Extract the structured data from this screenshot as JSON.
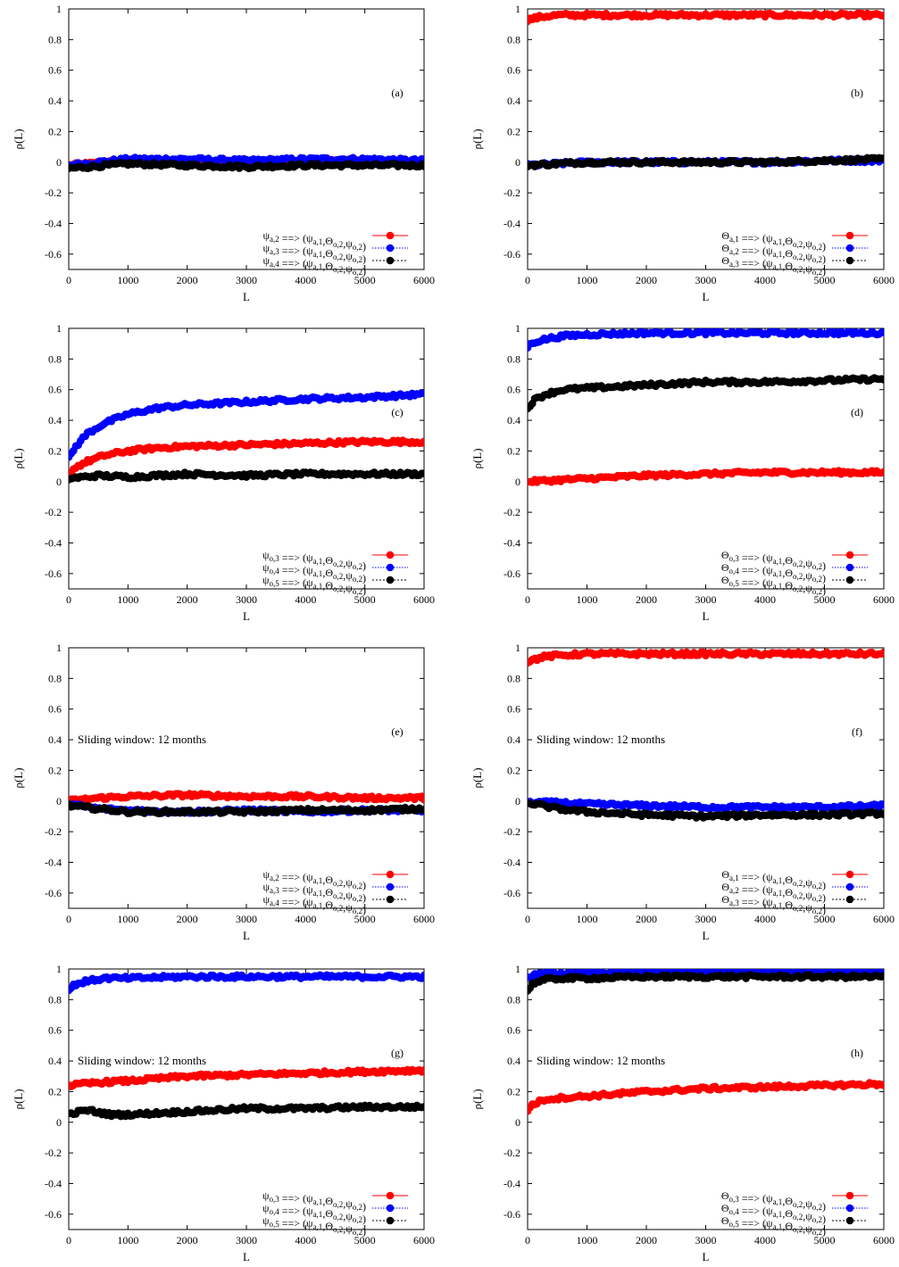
{
  "figure": {
    "x_ticks": [
      "0",
      "1000",
      "2000",
      "3000",
      "4000",
      "5000",
      "6000"
    ],
    "y_ticks": [
      "1",
      "0.8",
      "0.6",
      "0.4",
      "0.2",
      "0",
      "-0.2",
      "-0.4",
      "-0.6"
    ],
    "xlabel": "L",
    "ylabel": "ρ(L)",
    "colors": {
      "red": "#ff0000",
      "blue": "#0000ff",
      "black": "#000000"
    }
  },
  "chart_data": [
    {
      "type": "scatter",
      "panel": "(a)",
      "annotation": "",
      "xlabel": "L",
      "ylabel": "ρ(L)",
      "xlim": [
        0,
        6000
      ],
      "ylim": [
        -0.7,
        1
      ],
      "grid": false,
      "legend_position": "bottom-right",
      "series": [
        {
          "name": {
            "v": "ψ",
            "vs": "a,2",
            "t1": "ψ",
            "t1s": "a,1",
            "t2": "Θ",
            "t2s": "o,2",
            "t3": "ψ",
            "t3s": "o,2"
          },
          "color": "#ff0000",
          "line": "solid",
          "x": [
            0,
            1000,
            2000,
            3000,
            4000,
            5000,
            6000
          ],
          "y": [
            -0.02,
            0.01,
            0.01,
            0.0,
            0.01,
            0.01,
            0.0
          ]
        },
        {
          "name": {
            "v": "ψ",
            "vs": "a,3",
            "t1": "ψ",
            "t1s": "a,1",
            "t2": "Θ",
            "t2s": "o,2",
            "t3": "ψ",
            "t3s": "o,2"
          },
          "color": "#0000ff",
          "line": "dotted",
          "x": [
            0,
            1000,
            2000,
            3000,
            4000,
            5000,
            6000
          ],
          "y": [
            -0.02,
            0.02,
            0.02,
            0.01,
            0.02,
            0.02,
            0.01
          ]
        },
        {
          "name": {
            "v": "ψ",
            "vs": "a,4",
            "t1": "ψ",
            "t1s": "a,1",
            "t2": "Θ",
            "t2s": "o,2",
            "t3": "ψ",
            "t3s": "o,2"
          },
          "color": "#000000",
          "line": "dashed",
          "x": [
            0,
            1000,
            2000,
            3000,
            4000,
            5000,
            6000
          ],
          "y": [
            -0.04,
            -0.01,
            -0.02,
            -0.03,
            -0.02,
            -0.02,
            -0.02
          ]
        }
      ]
    },
    {
      "type": "scatter",
      "panel": "(b)",
      "annotation": "",
      "xlabel": "L",
      "ylabel": "ρ(L)",
      "xlim": [
        0,
        6000
      ],
      "ylim": [
        -0.7,
        1
      ],
      "grid": false,
      "legend_position": "bottom-right",
      "series": [
        {
          "name": {
            "v": "Θ",
            "vs": "a,1",
            "t1": "ψ",
            "t1s": "a,1",
            "t2": "Θ",
            "t2s": "o,2",
            "t3": "ψ",
            "t3s": "o,2"
          },
          "color": "#ff0000",
          "line": "solid",
          "x": [
            0,
            250,
            500,
            1000,
            2000,
            3000,
            4000,
            5000,
            6000
          ],
          "y": [
            0.93,
            0.95,
            0.96,
            0.96,
            0.96,
            0.96,
            0.96,
            0.96,
            0.96
          ]
        },
        {
          "name": {
            "v": "Θ",
            "vs": "a,2",
            "t1": "ψ",
            "t1s": "a,1",
            "t2": "Θ",
            "t2s": "o,2",
            "t3": "ψ",
            "t3s": "o,2"
          },
          "color": "#0000ff",
          "line": "dotted",
          "x": [
            0,
            1000,
            2000,
            3000,
            4000,
            5000,
            6000
          ],
          "y": [
            -0.02,
            0.0,
            0.0,
            0.0,
            0.0,
            0.01,
            0.01
          ]
        },
        {
          "name": {
            "v": "Θ",
            "vs": "a,3",
            "t1": "ψ",
            "t1s": "a,1",
            "t2": "Θ",
            "t2s": "o,2",
            "t3": "ψ",
            "t3s": "o,2"
          },
          "color": "#000000",
          "line": "dashed",
          "x": [
            0,
            1000,
            2000,
            3000,
            4000,
            5000,
            6000
          ],
          "y": [
            -0.02,
            0.0,
            0.0,
            0.0,
            0.0,
            0.01,
            0.02
          ]
        }
      ]
    },
    {
      "type": "scatter",
      "panel": "(c)",
      "annotation": "",
      "xlabel": "L",
      "ylabel": "ρ(L)",
      "xlim": [
        0,
        6000
      ],
      "ylim": [
        -0.7,
        1
      ],
      "grid": false,
      "legend_position": "bottom-right",
      "series": [
        {
          "name": {
            "v": "ψ",
            "vs": "o,3",
            "t1": "ψ",
            "t1s": "a,1",
            "t2": "Θ",
            "t2s": "o,2",
            "t3": "ψ",
            "t3s": "o,2"
          },
          "color": "#ff0000",
          "line": "solid",
          "x": [
            0,
            100,
            300,
            600,
            1000,
            1500,
            2000,
            3000,
            4000,
            5000,
            6000
          ],
          "y": [
            0.05,
            0.09,
            0.13,
            0.17,
            0.2,
            0.22,
            0.23,
            0.24,
            0.25,
            0.26,
            0.26
          ]
        },
        {
          "name": {
            "v": "ψ",
            "vs": "o,4",
            "t1": "ψ",
            "t1s": "a,1",
            "t2": "Θ",
            "t2s": "o,2",
            "t3": "ψ",
            "t3s": "o,2"
          },
          "color": "#0000ff",
          "line": "dotted",
          "x": [
            0,
            100,
            300,
            600,
            1000,
            1500,
            2000,
            3000,
            4000,
            5000,
            6000
          ],
          "y": [
            0.15,
            0.22,
            0.31,
            0.38,
            0.44,
            0.48,
            0.5,
            0.52,
            0.54,
            0.55,
            0.57
          ]
        },
        {
          "name": {
            "v": "ψ",
            "vs": "o,5",
            "t1": "ψ",
            "t1s": "a,1",
            "t2": "Θ",
            "t2s": "o,2",
            "t3": "ψ",
            "t3s": "o,2"
          },
          "color": "#000000",
          "line": "dashed",
          "x": [
            0,
            500,
            1000,
            2000,
            3000,
            4000,
            5000,
            6000
          ],
          "y": [
            0.02,
            0.04,
            0.03,
            0.05,
            0.04,
            0.05,
            0.05,
            0.05
          ]
        }
      ]
    },
    {
      "type": "scatter",
      "panel": "(d)",
      "annotation": "",
      "xlabel": "L",
      "ylabel": "ρ(L)",
      "xlim": [
        0,
        6000
      ],
      "ylim": [
        -0.7,
        1
      ],
      "grid": false,
      "legend_position": "bottom-right",
      "series": [
        {
          "name": {
            "v": "Θ",
            "vs": "o,3",
            "t1": "ψ",
            "t1s": "a,1",
            "t2": "Θ",
            "t2s": "o,2",
            "t3": "ψ",
            "t3s": "o,2"
          },
          "color": "#ff0000",
          "line": "solid",
          "x": [
            0,
            500,
            1000,
            2000,
            3000,
            4000,
            5000,
            6000
          ],
          "y": [
            0.0,
            0.01,
            0.02,
            0.04,
            0.05,
            0.06,
            0.06,
            0.06
          ]
        },
        {
          "name": {
            "v": "Θ",
            "vs": "o,4",
            "t1": "ψ",
            "t1s": "a,1",
            "t2": "Θ",
            "t2s": "o,2",
            "t3": "ψ",
            "t3s": "o,2"
          },
          "color": "#0000ff",
          "line": "dotted",
          "x": [
            0,
            100,
            300,
            600,
            1000,
            2000,
            3000,
            4000,
            5000,
            6000
          ],
          "y": [
            0.88,
            0.91,
            0.93,
            0.95,
            0.96,
            0.97,
            0.97,
            0.97,
            0.97,
            0.97
          ]
        },
        {
          "name": {
            "v": "Θ",
            "vs": "o,5",
            "t1": "ψ",
            "t1s": "a,1",
            "t2": "Θ",
            "t2s": "o,2",
            "t3": "ψ",
            "t3s": "o,2"
          },
          "color": "#000000",
          "line": "dashed",
          "x": [
            0,
            100,
            300,
            600,
            1000,
            2000,
            3000,
            4000,
            5000,
            6000
          ],
          "y": [
            0.48,
            0.53,
            0.57,
            0.6,
            0.61,
            0.63,
            0.65,
            0.65,
            0.66,
            0.67
          ]
        }
      ]
    },
    {
      "type": "scatter",
      "panel": "(e)",
      "annotation": "Sliding window: 12 months",
      "xlabel": "L",
      "ylabel": "ρ(L)",
      "xlim": [
        0,
        6000
      ],
      "ylim": [
        -0.7,
        1
      ],
      "grid": false,
      "legend_position": "bottom-right",
      "series": [
        {
          "name": {
            "v": "ψ",
            "vs": "a,2",
            "t1": "ψ",
            "t1s": "a,1",
            "t2": "Θ",
            "t2s": "o,2",
            "t3": "ψ",
            "t3s": "o,2"
          },
          "color": "#ff0000",
          "line": "solid",
          "x": [
            0,
            500,
            1000,
            2000,
            3000,
            4000,
            5000,
            6000
          ],
          "y": [
            0.0,
            0.02,
            0.03,
            0.04,
            0.03,
            0.03,
            0.02,
            0.02
          ]
        },
        {
          "name": {
            "v": "ψ",
            "vs": "a,3",
            "t1": "ψ",
            "t1s": "a,1",
            "t2": "Θ",
            "t2s": "o,2",
            "t3": "ψ",
            "t3s": "o,2"
          },
          "color": "#0000ff",
          "line": "dotted",
          "x": [
            0,
            500,
            1000,
            2000,
            3000,
            4000,
            5000,
            6000
          ],
          "y": [
            -0.02,
            -0.05,
            -0.06,
            -0.07,
            -0.06,
            -0.07,
            -0.06,
            -0.06
          ]
        },
        {
          "name": {
            "v": "ψ",
            "vs": "a,4",
            "t1": "ψ",
            "t1s": "a,1",
            "t2": "Θ",
            "t2s": "o,2",
            "t3": "ψ",
            "t3s": "o,2"
          },
          "color": "#000000",
          "line": "dashed",
          "x": [
            0,
            500,
            1000,
            2000,
            3000,
            4000,
            5000,
            6000
          ],
          "y": [
            -0.03,
            -0.05,
            -0.07,
            -0.07,
            -0.07,
            -0.06,
            -0.06,
            -0.05
          ]
        }
      ]
    },
    {
      "type": "scatter",
      "panel": "(f)",
      "annotation": "Sliding window: 12 months",
      "xlabel": "L",
      "ylabel": "ρ(L)",
      "xlim": [
        0,
        6000
      ],
      "ylim": [
        -0.7,
        1
      ],
      "grid": false,
      "legend_position": "bottom-right",
      "series": [
        {
          "name": {
            "v": "Θ",
            "vs": "a,1",
            "t1": "ψ",
            "t1s": "a,1",
            "t2": "Θ",
            "t2s": "o,2",
            "t3": "ψ",
            "t3s": "o,2"
          },
          "color": "#ff0000",
          "line": "solid",
          "x": [
            0,
            250,
            500,
            1000,
            2000,
            3000,
            4000,
            5000,
            6000
          ],
          "y": [
            0.91,
            0.94,
            0.95,
            0.96,
            0.96,
            0.96,
            0.96,
            0.96,
            0.96
          ]
        },
        {
          "name": {
            "v": "Θ",
            "vs": "a,2",
            "t1": "ψ",
            "t1s": "a,1",
            "t2": "Θ",
            "t2s": "o,2",
            "t3": "ψ",
            "t3s": "o,2"
          },
          "color": "#0000ff",
          "line": "dotted",
          "x": [
            0,
            500,
            1000,
            2000,
            3000,
            4000,
            5000,
            6000
          ],
          "y": [
            -0.01,
            -0.01,
            -0.02,
            -0.03,
            -0.04,
            -0.04,
            -0.04,
            -0.03
          ]
        },
        {
          "name": {
            "v": "Θ",
            "vs": "a,3",
            "t1": "ψ",
            "t1s": "a,1",
            "t2": "Θ",
            "t2s": "o,2",
            "t3": "ψ",
            "t3s": "o,2"
          },
          "color": "#000000",
          "line": "dashed",
          "x": [
            0,
            500,
            1000,
            2000,
            3000,
            4000,
            5000,
            6000
          ],
          "y": [
            -0.01,
            -0.05,
            -0.07,
            -0.09,
            -0.1,
            -0.09,
            -0.09,
            -0.08
          ]
        }
      ]
    },
    {
      "type": "scatter",
      "panel": "(g)",
      "annotation": "Sliding window: 12 months",
      "xlabel": "L",
      "ylabel": "ρ(L)",
      "xlim": [
        0,
        6000
      ],
      "ylim": [
        -0.7,
        1
      ],
      "grid": false,
      "legend_position": "bottom-right",
      "series": [
        {
          "name": {
            "v": "ψ",
            "vs": "o,3",
            "t1": "ψ",
            "t1s": "a,1",
            "t2": "Θ",
            "t2s": "o,2",
            "t3": "ψ",
            "t3s": "o,2"
          },
          "color": "#ff0000",
          "line": "solid",
          "x": [
            0,
            500,
            1000,
            2000,
            3000,
            4000,
            5000,
            6000
          ],
          "y": [
            0.24,
            0.26,
            0.27,
            0.3,
            0.31,
            0.32,
            0.33,
            0.34
          ]
        },
        {
          "name": {
            "v": "ψ",
            "vs": "o,4",
            "t1": "ψ",
            "t1s": "a,1",
            "t2": "Θ",
            "t2s": "o,2",
            "t3": "ψ",
            "t3s": "o,2"
          },
          "color": "#0000ff",
          "line": "dotted",
          "x": [
            0,
            100,
            300,
            600,
            1000,
            2000,
            3000,
            4000,
            5000,
            6000
          ],
          "y": [
            0.86,
            0.9,
            0.92,
            0.94,
            0.94,
            0.95,
            0.95,
            0.95,
            0.95,
            0.95
          ]
        },
        {
          "name": {
            "v": "ψ",
            "vs": "o,5",
            "t1": "ψ",
            "t1s": "a,1",
            "t2": "Θ",
            "t2s": "o,2",
            "t3": "ψ",
            "t3s": "o,2"
          },
          "color": "#000000",
          "line": "dashed",
          "x": [
            0,
            300,
            700,
            1000,
            1500,
            2000,
            3000,
            4000,
            5000,
            6000
          ],
          "y": [
            0.05,
            0.08,
            0.05,
            0.05,
            0.06,
            0.07,
            0.09,
            0.09,
            0.1,
            0.1
          ]
        }
      ]
    },
    {
      "type": "scatter",
      "panel": "(h)",
      "annotation": "Sliding window: 12 months",
      "xlabel": "L",
      "ylabel": "ρ(L)",
      "xlim": [
        0,
        6000
      ],
      "ylim": [
        -0.7,
        1
      ],
      "grid": false,
      "legend_position": "bottom-right",
      "series": [
        {
          "name": {
            "v": "Θ",
            "vs": "o,3",
            "t1": "ψ",
            "t1s": "a,1",
            "t2": "Θ",
            "t2s": "o,2",
            "t3": "ψ",
            "t3s": "o,2"
          },
          "color": "#ff0000",
          "line": "solid",
          "x": [
            0,
            100,
            300,
            600,
            1000,
            2000,
            3000,
            4000,
            5000,
            6000
          ],
          "y": [
            0.08,
            0.12,
            0.15,
            0.16,
            0.17,
            0.2,
            0.22,
            0.23,
            0.24,
            0.25
          ]
        },
        {
          "name": {
            "v": "Θ",
            "vs": "o,4",
            "t1": "ψ",
            "t1s": "a,1",
            "t2": "Θ",
            "t2s": "o,2",
            "t3": "ψ",
            "t3s": "o,2"
          },
          "color": "#0000ff",
          "line": "dotted",
          "x": [
            0,
            100,
            300,
            600,
            1000,
            2000,
            3000,
            4000,
            5000,
            6000
          ],
          "y": [
            0.94,
            0.96,
            0.97,
            0.97,
            0.98,
            0.98,
            0.98,
            0.98,
            0.98,
            0.98
          ]
        },
        {
          "name": {
            "v": "Θ",
            "vs": "o,5",
            "t1": "ψ",
            "t1s": "a,1",
            "t2": "Θ",
            "t2s": "o,2",
            "t3": "ψ",
            "t3s": "o,2"
          },
          "color": "#000000",
          "line": "dashed",
          "x": [
            0,
            100,
            300,
            600,
            1000,
            2000,
            3000,
            4000,
            5000,
            6000
          ],
          "y": [
            0.86,
            0.91,
            0.93,
            0.94,
            0.94,
            0.95,
            0.95,
            0.95,
            0.95,
            0.95
          ]
        }
      ]
    }
  ]
}
